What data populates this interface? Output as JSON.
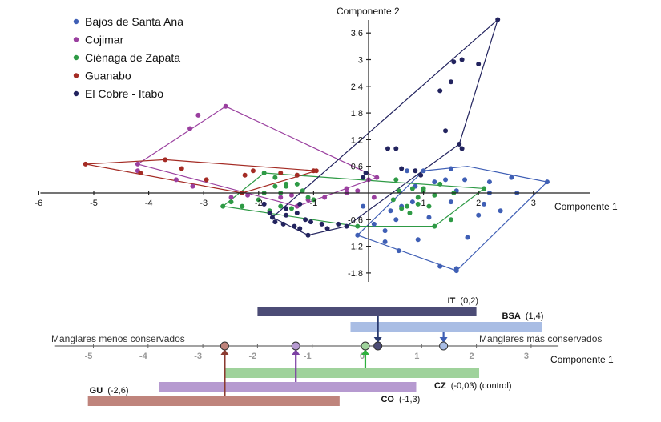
{
  "chart_data": [
    {
      "type": "scatter",
      "xlabel": "Componente 1",
      "ylabel": "Componente 2",
      "xlim": [
        -6,
        3.6
      ],
      "ylim": [
        -1.95,
        4.1
      ],
      "x_ticks": [
        -6,
        -5,
        -4,
        -3,
        -2,
        -1,
        1,
        2,
        3
      ],
      "x_tick_labels": [
        "-6",
        "-5",
        "-4",
        "-3",
        "-2",
        "-1",
        "1",
        "2",
        "3"
      ],
      "y_ticks": [
        -1.8,
        -1.2,
        -0.6,
        0.6,
        1.2,
        1.8,
        2.4,
        3,
        3.6
      ],
      "y_tick_labels": [
        "-1.8",
        "-1.2",
        "-0.6",
        "0.6",
        "1.2",
        "1.8",
        "2.4",
        "3",
        "3.6"
      ],
      "legend_position": "top-left",
      "series": [
        {
          "name": "Bajos de Santa Ana",
          "color": "#3f5fb5",
          "points": [
            [
              -0.2,
              -0.95
            ],
            [
              0.3,
              -1.1
            ],
            [
              0.55,
              -1.3
            ],
            [
              0.9,
              -1.05
            ],
            [
              1.3,
              -1.65
            ],
            [
              1.6,
              -1.75
            ],
            [
              1.6,
              -1.7
            ],
            [
              1.8,
              -1.0
            ],
            [
              2.0,
              -0.5
            ],
            [
              2.1,
              -0.25
            ],
            [
              2.1,
              0.1
            ],
            [
              2.2,
              0.25
            ],
            [
              2.4,
              -0.4
            ],
            [
              2.2,
              0.0
            ],
            [
              2.6,
              0.35
            ],
            [
              2.7,
              0.0
            ],
            [
              3.25,
              0.25
            ],
            [
              1.75,
              0.3
            ],
            [
              1.6,
              0.05
            ],
            [
              1.5,
              0.55
            ],
            [
              1.4,
              0.3
            ],
            [
              1.2,
              0.25
            ],
            [
              1.0,
              0.5
            ],
            [
              0.7,
              0.5
            ],
            [
              0.8,
              -0.2
            ],
            [
              0.5,
              -0.6
            ],
            [
              0.1,
              -0.7
            ],
            [
              -0.1,
              -0.3
            ],
            [
              0.4,
              -0.4
            ],
            [
              0.6,
              -0.3
            ],
            [
              1.1,
              -0.55
            ],
            [
              1.5,
              -0.2
            ],
            [
              0.85,
              0.15
            ],
            [
              0.3,
              -0.85
            ]
          ],
          "hull": [
            [
              -0.2,
              -0.95
            ],
            [
              1.6,
              -1.75
            ],
            [
              3.25,
              0.25
            ],
            [
              1.8,
              0.6
            ],
            [
              1.0,
              0.5
            ],
            [
              -0.2,
              -0.95
            ]
          ]
        },
        {
          "name": "Cojimar",
          "color": "#9a3f9f",
          "points": [
            [
              -4.2,
              0.65
            ],
            [
              -3.1,
              1.75
            ],
            [
              -2.6,
              1.95
            ],
            [
              -3.25,
              1.45
            ],
            [
              -4.2,
              0.5
            ],
            [
              -3.5,
              0.3
            ],
            [
              -3.2,
              0.15
            ],
            [
              -2.2,
              -0.05
            ],
            [
              -1.6,
              -0.1
            ],
            [
              -1.3,
              -0.3
            ],
            [
              -1.1,
              -0.15
            ],
            [
              -0.8,
              -0.1
            ],
            [
              -0.4,
              0.0
            ],
            [
              -0.4,
              0.1
            ],
            [
              0.0,
              0.3
            ],
            [
              0.1,
              -0.1
            ],
            [
              0.15,
              0.35
            ],
            [
              -0.2,
              0.05
            ],
            [
              -2.5,
              -0.1
            ],
            [
              -1.9,
              -0.25
            ],
            [
              -1.4,
              -0.05
            ]
          ],
          "hull": [
            [
              -4.2,
              0.65
            ],
            [
              -2.6,
              1.95
            ],
            [
              0.15,
              0.35
            ],
            [
              -1.3,
              -0.3
            ],
            [
              -4.2,
              0.65
            ]
          ]
        },
        {
          "name": "Ciénaga de Zapata",
          "color": "#2e9a45",
          "points": [
            [
              -2.65,
              -0.3
            ],
            [
              -2.5,
              -0.2
            ],
            [
              -2.3,
              -0.3
            ],
            [
              -2.0,
              -0.15
            ],
            [
              -1.9,
              0.0
            ],
            [
              -1.7,
              0.15
            ],
            [
              -1.5,
              0.15
            ],
            [
              -1.3,
              0.2
            ],
            [
              -1.2,
              0.05
            ],
            [
              -1.0,
              -0.15
            ],
            [
              -1.4,
              -0.35
            ],
            [
              -1.6,
              -0.3
            ],
            [
              -1.8,
              -0.4
            ],
            [
              -1.1,
              -0.1
            ],
            [
              -1.9,
              0.45
            ],
            [
              -1.3,
              0.4
            ],
            [
              -1.5,
              0.2
            ],
            [
              -1.7,
              0.35
            ],
            [
              -1.6,
              0.0
            ],
            [
              0.45,
              -0.15
            ],
            [
              0.5,
              0.3
            ],
            [
              0.8,
              0.1
            ],
            [
              0.9,
              -0.1
            ],
            [
              1.1,
              -0.3
            ],
            [
              1.2,
              -0.05
            ],
            [
              1.0,
              0.05
            ],
            [
              0.7,
              -0.3
            ],
            [
              0.75,
              -0.45
            ],
            [
              1.0,
              0.1
            ],
            [
              1.3,
              0.2
            ],
            [
              1.5,
              -0.6
            ],
            [
              1.2,
              -0.75
            ],
            [
              0.9,
              -0.25
            ],
            [
              0.6,
              -0.35
            ],
            [
              0.55,
              0.05
            ],
            [
              2.1,
              0.1
            ],
            [
              1.55,
              0.0
            ],
            [
              -0.2,
              -0.75
            ]
          ],
          "hull": [
            [
              -2.65,
              -0.3
            ],
            [
              -1.9,
              0.45
            ],
            [
              2.1,
              0.1
            ],
            [
              1.2,
              -0.75
            ],
            [
              -0.2,
              -0.75
            ],
            [
              -2.65,
              -0.3
            ]
          ]
        },
        {
          "name": "Guanabo",
          "color": "#a42b24",
          "points": [
            [
              -5.15,
              0.65
            ],
            [
              -3.7,
              0.75
            ],
            [
              -3.4,
              0.55
            ],
            [
              -4.15,
              0.45
            ],
            [
              -2.95,
              0.3
            ],
            [
              -2.25,
              0.4
            ],
            [
              -2.3,
              0.0
            ],
            [
              -1.3,
              0.4
            ],
            [
              -1.0,
              0.5
            ],
            [
              -0.95,
              0.5
            ],
            [
              -1.6,
              0.45
            ],
            [
              -2.1,
              0.5
            ]
          ],
          "hull": [
            [
              -5.15,
              0.65
            ],
            [
              -3.7,
              0.75
            ],
            [
              -0.95,
              0.5
            ],
            [
              -2.3,
              0.0
            ],
            [
              -5.15,
              0.65
            ]
          ]
        },
        {
          "name": "El Cobre - Itabo",
          "color": "#22235e",
          "points": [
            [
              2.35,
              3.9
            ],
            [
              1.7,
              3.0
            ],
            [
              1.55,
              2.95
            ],
            [
              2.0,
              2.9
            ],
            [
              1.5,
              2.5
            ],
            [
              1.3,
              2.3
            ],
            [
              1.4,
              1.4
            ],
            [
              1.65,
              1.1
            ],
            [
              1.7,
              1.0
            ],
            [
              0.5,
              1.0
            ],
            [
              0.35,
              1.0
            ],
            [
              0.6,
              0.55
            ],
            [
              0.95,
              0.4
            ],
            [
              0.85,
              0.5
            ],
            [
              -0.1,
              0.35
            ],
            [
              -0.05,
              0.45
            ],
            [
              -1.75,
              -0.55
            ],
            [
              -1.5,
              -0.5
            ],
            [
              -1.15,
              -0.6
            ],
            [
              -1.55,
              -0.7
            ],
            [
              -1.25,
              -0.8
            ],
            [
              -1.05,
              -0.65
            ],
            [
              -0.85,
              -0.7
            ],
            [
              -0.75,
              -0.8
            ],
            [
              -0.4,
              -0.75
            ],
            [
              -1.9,
              -0.25
            ],
            [
              -1.5,
              -0.35
            ],
            [
              -1.25,
              -0.25
            ],
            [
              -1.8,
              -0.45
            ],
            [
              -1.35,
              -0.75
            ],
            [
              -1.1,
              -0.95
            ],
            [
              -0.55,
              -0.7
            ],
            [
              -1.3,
              -0.45
            ],
            [
              -1.7,
              -0.65
            ]
          ],
          "hull": [
            [
              -1.75,
              -0.55
            ],
            [
              2.35,
              3.9
            ],
            [
              1.65,
              1.1
            ],
            [
              -0.4,
              -0.75
            ],
            [
              -1.1,
              -0.95
            ],
            [
              -1.75,
              -0.55
            ]
          ]
        }
      ]
    },
    {
      "type": "bar",
      "orientation": "horizontal",
      "xlabel": "Componente 1",
      "xlim": [
        -6,
        3.6
      ],
      "x_ticks": [
        -5,
        -4,
        -3,
        -2,
        -1,
        0,
        1,
        2,
        3
      ],
      "x_tick_labels": [
        "-5",
        "-4",
        "-3",
        "-2",
        "-1",
        "0",
        "1",
        "2",
        "3"
      ],
      "left_label": "Manglares menos conservados",
      "right_label": "Manglares más conservados",
      "series": [
        {
          "code": "IT",
          "value_text": "(0,2)",
          "mean": 0.2,
          "range": [
            -2.0,
            2.0
          ],
          "color": "#4c4c76",
          "marker_color": "#2a3a6f",
          "position": "above",
          "level": 1
        },
        {
          "code": "BSA",
          "value_text": "(1,4)",
          "mean": 1.4,
          "range": [
            -0.3,
            3.2
          ],
          "color": "#a9bde4",
          "marker_color": "#3f5fb5",
          "position": "above",
          "level": 2
        },
        {
          "code": "CZ",
          "value_text": "(-0,03) (control)",
          "mean": -0.03,
          "range": [
            -2.6,
            2.05
          ],
          "color": "#9fd29b",
          "marker_color": "#2eb03e",
          "position": "below",
          "level": 1
        },
        {
          "code": "CO",
          "value_text": "(-1,3)",
          "mean": -1.3,
          "range": [
            -3.8,
            0.9
          ],
          "color": "#b69ad0",
          "marker_color": "#7b3fa3",
          "position": "below",
          "level": 2
        },
        {
          "code": "GU",
          "value_text": "(-2,6)",
          "mean": -2.6,
          "range": [
            -5.1,
            -0.5
          ],
          "color": "#bf847c",
          "marker_color": "#8b3a30",
          "position": "below",
          "level": 3
        }
      ]
    }
  ]
}
